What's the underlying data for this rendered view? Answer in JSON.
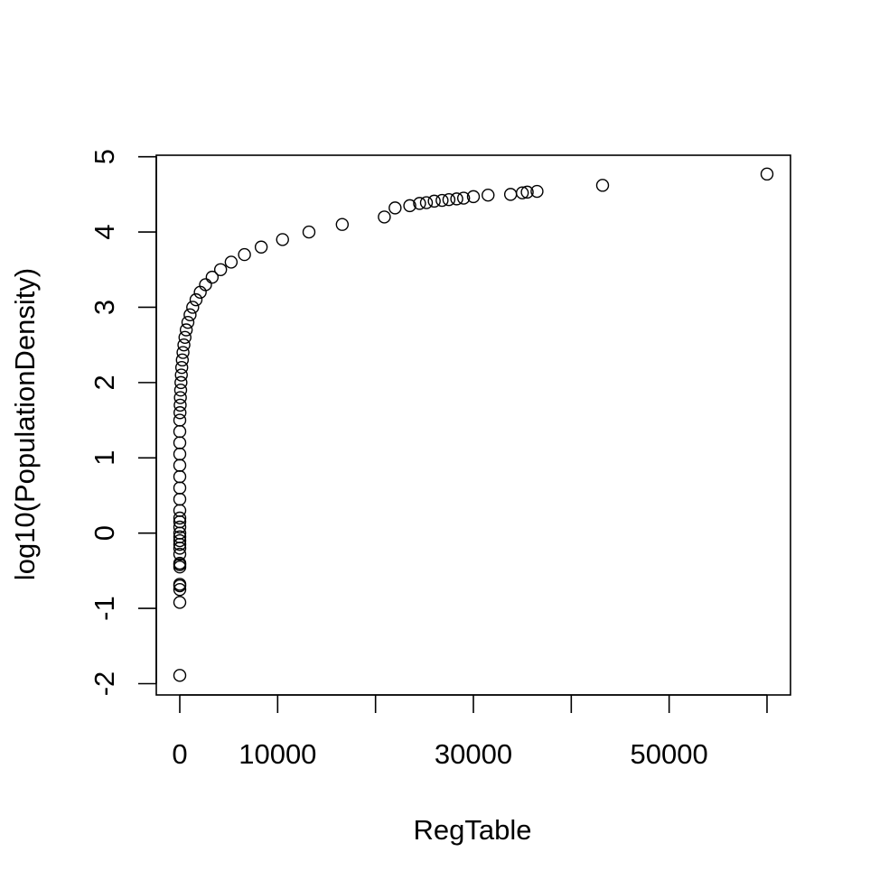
{
  "chart_data": {
    "type": "scatter",
    "title": "",
    "xlabel": "RegTable",
    "ylabel": "log10(PopulationDensity)",
    "x_ticks": [
      0,
      10000,
      20000,
      30000,
      40000,
      50000,
      60000
    ],
    "x_tick_labels": [
      "0",
      "10000",
      "",
      "30000",
      "",
      "50000",
      ""
    ],
    "y_ticks": [
      -2,
      -1,
      0,
      1,
      2,
      3,
      4,
      5
    ],
    "y_tick_labels": [
      "-2",
      "-1",
      "0",
      "1",
      "2",
      "3",
      "4",
      "5"
    ],
    "xlim": [
      -2400,
      62400
    ],
    "ylim": [
      -2.15,
      5.02
    ],
    "grid": false,
    "legend": "none",
    "marker": "open-circle",
    "points": [
      [
        0,
        -1.89
      ],
      [
        0,
        -0.92
      ],
      [
        0,
        -0.75
      ],
      [
        0,
        -0.7
      ],
      [
        0,
        -0.68
      ],
      [
        0,
        -0.45
      ],
      [
        0,
        -0.42
      ],
      [
        0,
        -0.4
      ],
      [
        0,
        -0.28
      ],
      [
        0,
        -0.2
      ],
      [
        0,
        -0.15
      ],
      [
        0,
        -0.1
      ],
      [
        0,
        -0.05
      ],
      [
        0,
        0.0
      ],
      [
        0,
        0.08
      ],
      [
        0,
        0.15
      ],
      [
        0,
        0.2
      ],
      [
        0,
        0.3
      ],
      [
        0,
        0.45
      ],
      [
        0,
        0.6
      ],
      [
        0,
        0.75
      ],
      [
        0,
        0.9
      ],
      [
        0,
        1.05
      ],
      [
        0,
        1.2
      ],
      [
        0,
        1.35
      ],
      [
        0,
        1.5
      ],
      [
        20,
        1.6
      ],
      [
        40,
        1.7
      ],
      [
        60,
        1.8
      ],
      [
        90,
        1.9
      ],
      [
        120,
        2.0
      ],
      [
        160,
        2.1
      ],
      [
        200,
        2.2
      ],
      [
        260,
        2.3
      ],
      [
        330,
        2.4
      ],
      [
        420,
        2.5
      ],
      [
        530,
        2.6
      ],
      [
        660,
        2.7
      ],
      [
        830,
        2.8
      ],
      [
        1050,
        2.9
      ],
      [
        1320,
        3.0
      ],
      [
        1660,
        3.1
      ],
      [
        2090,
        3.2
      ],
      [
        2630,
        3.3
      ],
      [
        3310,
        3.4
      ],
      [
        4170,
        3.5
      ],
      [
        5250,
        3.6
      ],
      [
        6610,
        3.7
      ],
      [
        8320,
        3.8
      ],
      [
        10500,
        3.9
      ],
      [
        13200,
        4.0
      ],
      [
        16600,
        4.1
      ],
      [
        20900,
        4.2
      ],
      [
        22000,
        4.32
      ],
      [
        23500,
        4.35
      ],
      [
        24500,
        4.38
      ],
      [
        25200,
        4.39
      ],
      [
        26000,
        4.41
      ],
      [
        26800,
        4.42
      ],
      [
        27500,
        4.43
      ],
      [
        28300,
        4.44
      ],
      [
        29000,
        4.45
      ],
      [
        30000,
        4.47
      ],
      [
        31500,
        4.49
      ],
      [
        33800,
        4.5
      ],
      [
        35000,
        4.52
      ],
      [
        35500,
        4.53
      ],
      [
        36500,
        4.54
      ],
      [
        43200,
        4.62
      ],
      [
        60000,
        4.77
      ]
    ]
  }
}
